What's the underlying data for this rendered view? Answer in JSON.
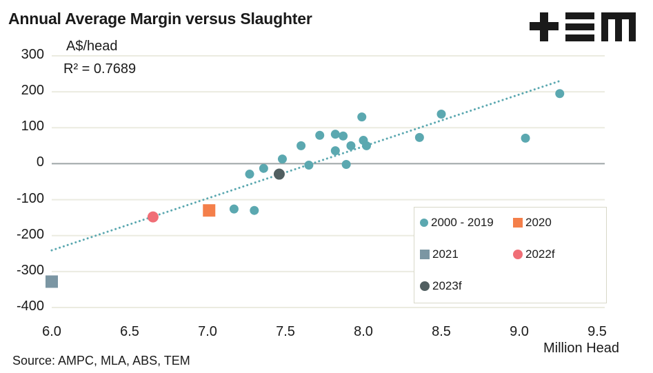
{
  "header": {
    "title": "Annual Average Margin versus Slaughter",
    "logo_text": "TEM"
  },
  "chart_data": {
    "type": "scatter",
    "title": "Annual Average Margin versus Slaughter",
    "ylabel": "A$/head",
    "xlabel": "Million Head",
    "annotation": "R² = 0.7689",
    "source": "Source: AMPC, MLA, ABS, TEM",
    "xlim": [
      6.0,
      9.5
    ],
    "ylim": [
      -400,
      300
    ],
    "xticks": [
      "6.0",
      "6.5",
      "7.0",
      "7.5",
      "8.0",
      "8.5",
      "9.0",
      "9.5"
    ],
    "yticks": [
      "300",
      "200",
      "100",
      "0",
      "-100",
      "-200",
      "-300",
      "-400"
    ],
    "grid": true,
    "legend_position": "bottom-right",
    "colors": {
      "2000 - 2019": "#5ba8b0",
      "2020": "#f47f4a",
      "2021": "#7b96a3",
      "2022f": "#f06e76",
      "2023f": "#515f61",
      "gridline": "#ebebe0",
      "zeroline": "#9ea5a6",
      "trendline": "#5ba8b0"
    },
    "series": [
      {
        "name": "2000 - 2019",
        "marker": "circle",
        "points": [
          [
            7.17,
            -126
          ],
          [
            7.27,
            -29
          ],
          [
            7.3,
            -130
          ],
          [
            7.36,
            -13
          ],
          [
            7.48,
            13
          ],
          [
            7.6,
            50
          ],
          [
            7.65,
            -4
          ],
          [
            7.72,
            79
          ],
          [
            7.82,
            82
          ],
          [
            7.82,
            36
          ],
          [
            7.87,
            77
          ],
          [
            7.89,
            -2
          ],
          [
            7.92,
            50
          ],
          [
            7.99,
            130
          ],
          [
            8.0,
            65
          ],
          [
            8.02,
            50
          ],
          [
            8.36,
            73
          ],
          [
            8.5,
            138
          ],
          [
            9.04,
            71
          ],
          [
            9.26,
            195
          ]
        ]
      },
      {
        "name": "2020",
        "marker": "square",
        "points": [
          [
            7.01,
            -130
          ]
        ]
      },
      {
        "name": "2021",
        "marker": "square",
        "points": [
          [
            6.0,
            -328
          ]
        ]
      },
      {
        "name": "2022f",
        "marker": "circle",
        "points": [
          [
            6.65,
            -148
          ]
        ]
      },
      {
        "name": "2023f",
        "marker": "circle",
        "points": [
          [
            7.46,
            -29
          ]
        ]
      }
    ],
    "trendline": {
      "type": "linear",
      "from": [
        6.0,
        -241
      ],
      "to": [
        9.26,
        230
      ],
      "style": "dotted"
    },
    "legend": [
      "2000 - 2019",
      "2020",
      "2021",
      "2022f",
      "2023f"
    ]
  }
}
